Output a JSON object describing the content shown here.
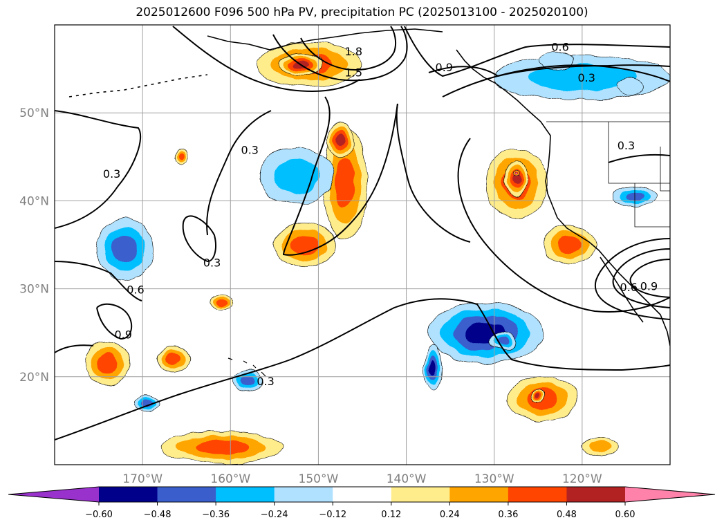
{
  "chart_data": {
    "type": "contour-map",
    "title": "2025012600 F096 500 hPa PV, precipitation PC (2025013100 - 2025020100)",
    "projection": "PlateCarree",
    "xlim": [
      180,
      250
    ],
    "ylim": [
      10,
      60
    ],
    "grid": true,
    "xticks": [
      {
        "lon": 190,
        "label": "170°W"
      },
      {
        "lon": 200,
        "label": "160°W"
      },
      {
        "lon": 210,
        "label": "150°W"
      },
      {
        "lon": 220,
        "label": "140°W"
      },
      {
        "lon": 230,
        "label": "130°W"
      },
      {
        "lon": 240,
        "label": "120°W"
      }
    ],
    "yticks": [
      {
        "lat": 20,
        "label": "20°N"
      },
      {
        "lat": 30,
        "label": "30°N"
      },
      {
        "lat": 40,
        "label": "40°N"
      },
      {
        "lat": 50,
        "label": "50°N"
      }
    ],
    "colorbar": {
      "levels": [
        -0.6,
        -0.48,
        -0.36,
        -0.24,
        -0.12,
        0.12,
        0.24,
        0.36,
        0.48,
        0.6
      ],
      "labels": [
        "−0.60",
        "−0.48",
        "−0.36",
        "−0.24",
        "−0.12",
        "0.12",
        "0.24",
        "0.36",
        "0.48",
        "0.60"
      ],
      "colors": [
        "#9932cc",
        "#00008b",
        "#3a5fcd",
        "#00bfff",
        "#b0e2ff",
        "#ffffff",
        "#ffec8b",
        "#ffa500",
        "#ff4500",
        "#b22222",
        "#ff82ab"
      ],
      "extend": "both"
    },
    "shaded_regions": [
      {
        "sign": "negative",
        "level_index": 1,
        "center": [
          207.5,
          42.8
        ],
        "radius": [
          4.2,
          3.2
        ],
        "peak": -0.52
      },
      {
        "sign": "negative",
        "level_index": 0,
        "center": [
          237,
          56
        ],
        "radius": [
          2.0,
          1.0
        ],
        "peak": -0.62
      },
      {
        "sign": "negative",
        "level_index": 0,
        "center": [
          245.5,
          53
        ],
        "radius": [
          1.5,
          1.0
        ],
        "peak": -0.62
      },
      {
        "sign": "negative",
        "level_index": 1,
        "center": [
          240,
          54
        ],
        "radius": [
          10,
          2.5
        ],
        "peak": -0.52
      },
      {
        "sign": "negative",
        "level_index": 2,
        "center": [
          188,
          34.5
        ],
        "radius": [
          3.2,
          3.5
        ],
        "peak": -0.4
      },
      {
        "sign": "negative",
        "level_index": 2,
        "center": [
          246,
          40.5
        ],
        "radius": [
          2.5,
          1.2
        ],
        "peak": -0.4
      },
      {
        "sign": "negative",
        "level_index": 2,
        "center": [
          202,
          19.5
        ],
        "radius": [
          1.8,
          1.2
        ],
        "peak": -0.4
      },
      {
        "sign": "negative",
        "level_index": 2,
        "center": [
          190.5,
          17
        ],
        "radius": [
          1.5,
          0.8
        ],
        "peak": -0.4
      },
      {
        "sign": "negative",
        "level_index": 2,
        "center": [
          231,
          24
        ],
        "radius": [
          1.5,
          1.0
        ],
        "peak": -0.4
      },
      {
        "sign": "negative",
        "level_index": 3,
        "center": [
          229,
          25
        ],
        "radius": [
          6.5,
          3.5
        ],
        "peak": -0.3
      },
      {
        "sign": "negative",
        "level_index": 3,
        "center": [
          223,
          21
        ],
        "radius": [
          1.0,
          2.5
        ],
        "peak": -0.3
      },
      {
        "sign": "positive",
        "level_index": 3,
        "center": [
          212.5,
          47
        ],
        "radius": [
          1.5,
          2.0
        ],
        "peak": 0.5
      },
      {
        "sign": "positive",
        "level_index": 2,
        "center": [
          213,
          42
        ],
        "radius": [
          2.5,
          6.5
        ],
        "peak": 0.42
      },
      {
        "sign": "positive",
        "level_index": 2,
        "center": [
          208.5,
          35
        ],
        "radius": [
          3.5,
          2.5
        ],
        "peak": 0.42
      },
      {
        "sign": "positive",
        "level_index": 3,
        "center": [
          208,
          55.5
        ],
        "radius": [
          2.5,
          1.2
        ],
        "peak": 0.5
      },
      {
        "sign": "positive",
        "level_index": 2,
        "center": [
          209,
          55.5
        ],
        "radius": [
          6.0,
          2.5
        ],
        "peak": 0.42
      },
      {
        "sign": "positive",
        "level_index": 4,
        "center": [
          232.5,
          43.2
        ],
        "radius": [
          0.3,
          0.3
        ],
        "peak": 0.65
      },
      {
        "sign": "positive",
        "level_index": 3,
        "center": [
          232.5,
          42.5
        ],
        "radius": [
          1.2,
          2.0
        ],
        "peak": 0.52
      },
      {
        "sign": "positive",
        "level_index": 2,
        "center": [
          232.5,
          42
        ],
        "radius": [
          3.5,
          4.0
        ],
        "peak": 0.42
      },
      {
        "sign": "positive",
        "level_index": 2,
        "center": [
          238.5,
          35
        ],
        "radius": [
          3.0,
          2.2
        ],
        "peak": 0.42
      },
      {
        "sign": "positive",
        "level_index": 3,
        "center": [
          235,
          17.8
        ],
        "radius": [
          0.8,
          0.6
        ],
        "peak": 0.52
      },
      {
        "sign": "positive",
        "level_index": 2,
        "center": [
          235.5,
          17.5
        ],
        "radius": [
          4.0,
          2.5
        ],
        "peak": 0.42
      },
      {
        "sign": "positive",
        "level_index": 2,
        "center": [
          186,
          21.5
        ],
        "radius": [
          2.5,
          2.5
        ],
        "peak": 0.42
      },
      {
        "sign": "positive",
        "level_index": 2,
        "center": [
          193.5,
          22
        ],
        "radius": [
          1.8,
          1.5
        ],
        "peak": 0.42
      },
      {
        "sign": "positive",
        "level_index": 2,
        "center": [
          199,
          12
        ],
        "radius": [
          7.0,
          1.8
        ],
        "peak": 0.42
      },
      {
        "sign": "positive",
        "level_index": 2,
        "center": [
          199,
          28.5
        ],
        "radius": [
          1.2,
          0.8
        ],
        "peak": 0.4
      },
      {
        "sign": "positive",
        "level_index": 2,
        "center": [
          194.5,
          45
        ],
        "radius": [
          0.8,
          1.0
        ],
        "peak": 0.4
      },
      {
        "sign": "positive",
        "level_index": 1,
        "center": [
          242,
          12
        ],
        "radius": [
          2.0,
          1.0
        ],
        "peak": 0.3
      }
    ],
    "pv_contours": [
      {
        "value": 0.3,
        "label": "0.3"
      },
      {
        "value": 0.6,
        "label": "0.6"
      },
      {
        "value": 0.9,
        "label": "0.9"
      },
      {
        "value": 1.5,
        "label": "1.5"
      },
      {
        "value": 1.8,
        "label": "1.8"
      }
    ],
    "contour_labels": [
      {
        "text": "1.8",
        "lon": 214,
        "lat": 56.7
      },
      {
        "text": "1.5",
        "lon": 214,
        "lat": 54.3
      },
      {
        "text": "0.6",
        "lon": 237.5,
        "lat": 57.2
      },
      {
        "text": "0.9",
        "lon": 224.3,
        "lat": 54.9
      },
      {
        "text": "0.3",
        "lon": 240.5,
        "lat": 53.7
      },
      {
        "text": "0.3",
        "lon": 202.2,
        "lat": 45.5
      },
      {
        "text": "0.3",
        "lon": 186.5,
        "lat": 42.8
      },
      {
        "text": "0.3",
        "lon": 245.0,
        "lat": 46.0
      },
      {
        "text": "0.3",
        "lon": 197.9,
        "lat": 32.7
      },
      {
        "text": "0.6",
        "lon": 189.2,
        "lat": 29.6
      },
      {
        "text": "0.9",
        "lon": 187.8,
        "lat": 24.5
      },
      {
        "text": "0.3",
        "lon": 204.0,
        "lat": 19.2
      },
      {
        "text": "0.6",
        "lon": 245.3,
        "lat": 29.9
      },
      {
        "text": "0.9",
        "lon": 247.6,
        "lat": 30.0
      }
    ]
  }
}
